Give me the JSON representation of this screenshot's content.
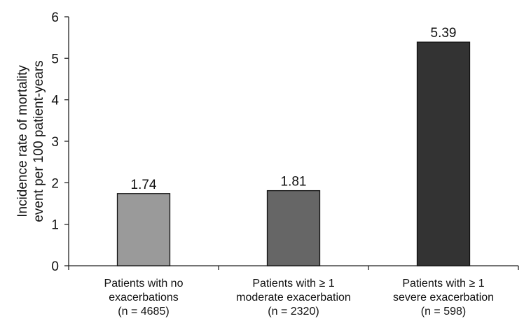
{
  "chart_data": {
    "type": "bar",
    "categories": [
      [
        "Patients with no",
        "exacerbations",
        "(n = 4685)"
      ],
      [
        "Patients with ≥ 1",
        "moderate exacerbation",
        "(n = 2320)"
      ],
      [
        "Patients with ≥ 1",
        "severe exacerbation",
        "(n = 598)"
      ]
    ],
    "values": [
      1.74,
      1.81,
      5.39
    ],
    "value_labels": [
      "1.74",
      "1.81",
      "5.39"
    ],
    "bar_colors": [
      "#9a9a9a",
      "#666666",
      "#333333"
    ],
    "title": "",
    "xlabel": "",
    "ylabel": [
      "Incidence rate of mortality",
      "event per 100 patient-years"
    ],
    "ylim": [
      0,
      6
    ],
    "yticks": [
      "0",
      "1",
      "2",
      "3",
      "4",
      "5",
      "6"
    ],
    "grid": false,
    "legend": "none"
  }
}
